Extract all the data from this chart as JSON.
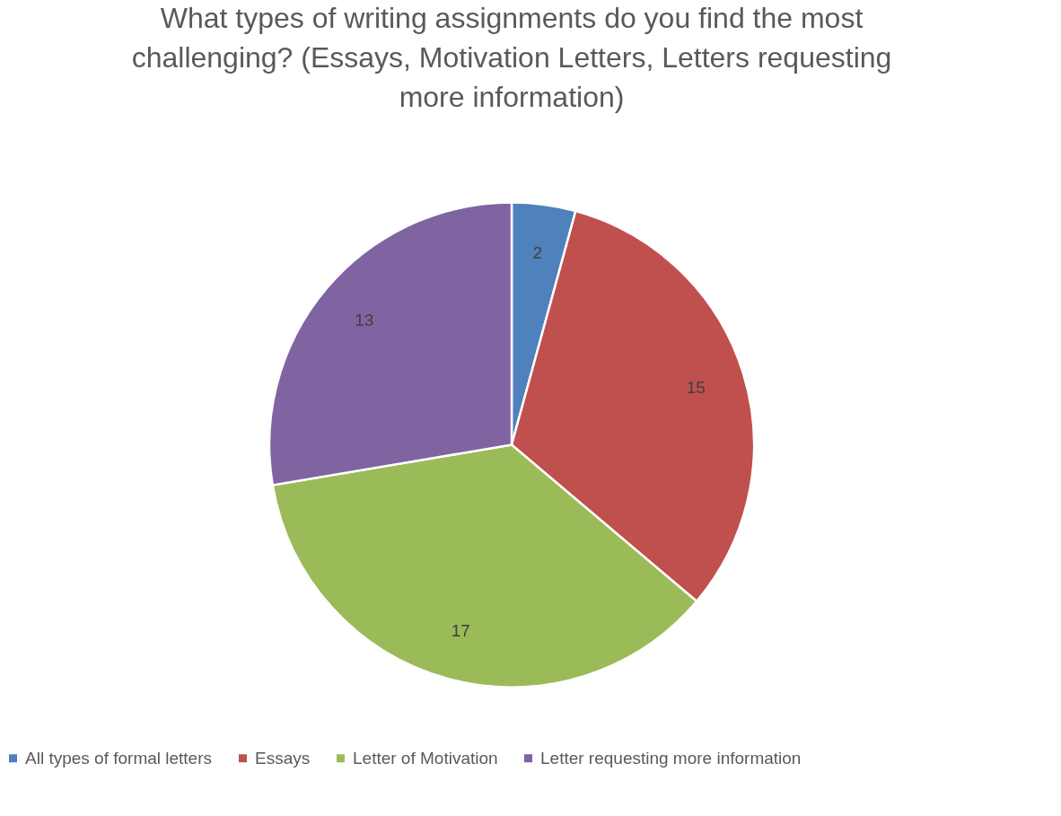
{
  "chart_data": {
    "type": "pie",
    "title": "What types of writing assignments do you find the most challenging? (Essays, Motivation Letters, Letters requesting more information)",
    "categories": [
      "All types of formal letters",
      "Essays",
      "Letter of Motivation",
      "Letter requesting more information"
    ],
    "values": [
      2,
      15,
      17,
      13
    ],
    "colors": [
      "#4f81bd",
      "#c0504d",
      "#9bbb59",
      "#8064a2"
    ],
    "data_labels": true,
    "legend": "bottom"
  }
}
